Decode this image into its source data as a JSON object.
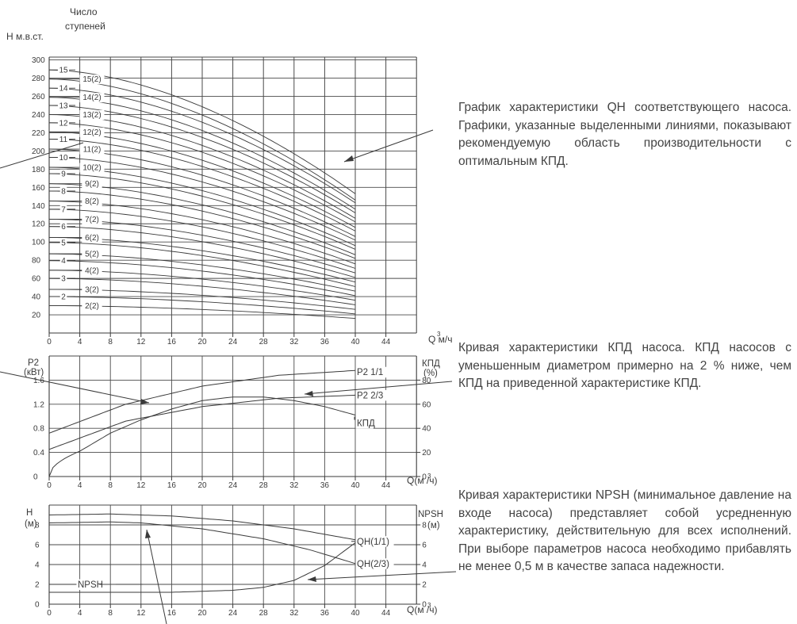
{
  "chart_data": [
    {
      "type": "line",
      "ylabel": "H м.в.ст.",
      "stages_header": [
        "Число",
        "ступеней"
      ],
      "xlabel": "Q м³/ч",
      "x_ticks": [
        0,
        4,
        8,
        12,
        16,
        20,
        24,
        28,
        32,
        36,
        40,
        44
      ],
      "y_ticks": [
        20,
        40,
        60,
        80,
        100,
        120,
        140,
        160,
        180,
        200,
        220,
        240,
        260,
        280,
        300
      ],
      "xlim": [
        0,
        48
      ],
      "ylim": [
        0,
        305
      ],
      "grid": true,
      "x_range_curves": [
        0,
        40
      ],
      "full_impeller": {
        "labels": [
          "2",
          "3",
          "4",
          "5",
          "6",
          "7",
          "8",
          "9",
          "10",
          "11",
          "12",
          "13",
          "14",
          "15"
        ],
        "h0": [
          40,
          60,
          79.5,
          99.5,
          117,
          136,
          156,
          175,
          193,
          213,
          231,
          250,
          269,
          289
        ],
        "h40": [
          21,
          31,
          41,
          51,
          61,
          71,
          82,
          92,
          102,
          112,
          122,
          132,
          143,
          153
        ]
      },
      "reduced_impeller": {
        "labels": [
          "2(2)",
          "3(2)",
          "4(2)",
          "5(2)",
          "6(2)",
          "7(2)",
          "8(2)",
          "9(2)",
          "10(2)",
          "11(2)",
          "12(2)",
          "13(2)",
          "14(2)",
          "15(2)"
        ],
        "h0": [
          30,
          48,
          69,
          87,
          105,
          125,
          145,
          164,
          182,
          202,
          221,
          240,
          259,
          279
        ],
        "h40": [
          16,
          26,
          36,
          46,
          56,
          66,
          76,
          86,
          96,
          106,
          116,
          126,
          136,
          146
        ]
      }
    },
    {
      "type": "line",
      "ylabel_left": [
        "P2",
        "(кВт)"
      ],
      "ylabel_right": [
        "КПД",
        "(%)"
      ],
      "xlabel": "Q(м³/ч)",
      "x_ticks": [
        0,
        4,
        8,
        12,
        16,
        20,
        24,
        28,
        32,
        36,
        40,
        44
      ],
      "y_ticks_left": [
        "0",
        "0.4",
        "0.8",
        "1.2",
        "1.6"
      ],
      "y_ticks_right": [
        "0",
        "20",
        "40",
        "60",
        "80"
      ],
      "ylim_left": [
        0,
        2.0
      ],
      "ylim_right": [
        0,
        100
      ],
      "grid": true,
      "series": [
        {
          "name": "P2 1/1",
          "x": [
            0,
            10,
            20,
            30,
            40
          ],
          "y": [
            0.72,
            1.2,
            1.5,
            1.68,
            1.76
          ]
        },
        {
          "name": "P2 2/3",
          "x": [
            0,
            10,
            20,
            30,
            40
          ],
          "y": [
            0.45,
            0.92,
            1.16,
            1.3,
            1.35
          ]
        },
        {
          "name": "КПД",
          "x": [
            0,
            4,
            8,
            12,
            16,
            20,
            24,
            28,
            32,
            36,
            40
          ],
          "y": [
            0,
            21,
            36,
            47,
            56,
            63,
            66,
            66,
            63,
            58,
            51
          ]
        }
      ]
    },
    {
      "type": "line",
      "ylabel_left": [
        "H",
        "(м)"
      ],
      "ylabel_right": [
        "NPSH",
        "(м)"
      ],
      "xlabel": "Q(м³/ч)",
      "x_ticks": [
        0,
        4,
        8,
        12,
        16,
        20,
        24,
        28,
        32,
        36,
        40,
        44
      ],
      "y_ticks_left": [
        0,
        2,
        4,
        6,
        8
      ],
      "y_ticks_right": [
        0,
        2,
        4,
        6,
        8
      ],
      "ylim": [
        0,
        10
      ],
      "grid": true,
      "series": [
        {
          "name": "QH(1/1)",
          "x": [
            0,
            8,
            16,
            24,
            32,
            40
          ],
          "y": [
            9.0,
            9.1,
            8.9,
            8.4,
            7.6,
            6.5
          ]
        },
        {
          "name": "QH(2/3)",
          "x": [
            0,
            8,
            12,
            20,
            28,
            34,
            40
          ],
          "y": [
            8.2,
            8.3,
            8.2,
            7.6,
            6.6,
            5.5,
            4.1
          ]
        },
        {
          "name": "NPSH",
          "x": [
            0,
            8,
            16,
            24,
            28,
            32,
            36,
            40
          ],
          "y": [
            1.2,
            1.2,
            1.2,
            1.4,
            1.7,
            2.4,
            3.9,
            6.2
          ]
        }
      ]
    }
  ],
  "descriptions": {
    "qh": "График характеристики QH соответствующего насоса. Графики, указанные выделенными линиями, показывают рекомендуемую область производительности с оптимальным КПД.",
    "eff": "Кривая характеристики КПД насоса. КПД насосов с уменьшенным диаметром примерно на 2 % ниже, чем КПД на приведенной характеристике КПД.",
    "npsh": "Кривая характеристики NPSH (минимальное давление на входе насоса) представляет собой усредненную характеристику, действительную для всех исполнений. При выборе параметров насоса необходимо прибавлять не менее 0,5 м в качестве запаса надежности."
  },
  "colors": {
    "line": "#3a3a3a",
    "grid": "#4a4a4a",
    "text": "#444444"
  }
}
